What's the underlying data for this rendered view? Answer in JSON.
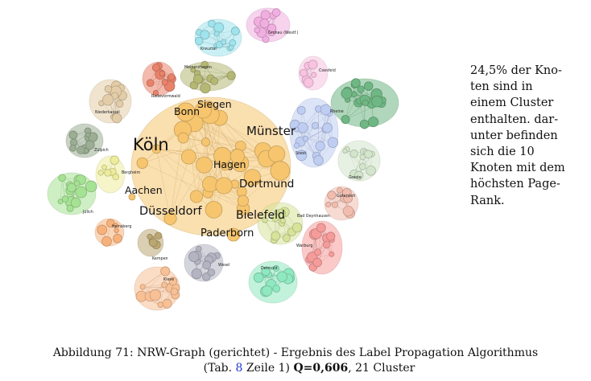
{
  "figure": {
    "big_labels": [
      "Köln",
      "Münster",
      "Bonn",
      "Siegen",
      "Hagen",
      "Dortmund",
      "Aachen",
      "Düsseldorf",
      "Bielefeld",
      "Paderborn"
    ],
    "small_labels": [
      "Gronau (Westf.)",
      "Kreuztal",
      "Meinerzhagen",
      "Coesfeld",
      "Radevormwald",
      "Niederkassel",
      "Rheine",
      "Soest",
      "Zülpich",
      "Bergheim",
      "Greste",
      "Jülich",
      "Gütersloh",
      "Bad Oeynhausen",
      "Heinsberg",
      "Warburg",
      "Kempen",
      "Wesel",
      "Detmold",
      "Kleve"
    ],
    "cluster_colors": [
      "#f6c56e",
      "#9fe3ec",
      "#f1aee0",
      "#b5b874",
      "#f8c2e0",
      "#e9826a",
      "#e3cda8",
      "#6fb784",
      "#bfcdf2",
      "#9bae93",
      "#ecec9c",
      "#d3e6cc",
      "#a6e294",
      "#f1bdae",
      "#f7b27c",
      "#d7e39a",
      "#f59c9a",
      "#bba772",
      "#b3b3c2",
      "#8fe8c0",
      "#f8c095"
    ]
  },
  "side_text": {
    "lines": [
      "24,5% der Kno-",
      "ten sind in",
      "einem Cluster",
      "enthalten. dar-",
      "unter befinden",
      "sich die 10",
      "Knoten mit dem",
      "höchsten Page-",
      "Rank."
    ]
  },
  "caption": {
    "prefix": "Abbildung 71: NRW-Graph (gerichtet) - Ergebnis des Label Propagation Algorithmus",
    "tab_open": "(Tab.",
    "tab_ref": "8",
    "row_text": "Zeile 1)",
    "q_value": "Q=0,606",
    "suffix": ", 21 Cluster"
  }
}
